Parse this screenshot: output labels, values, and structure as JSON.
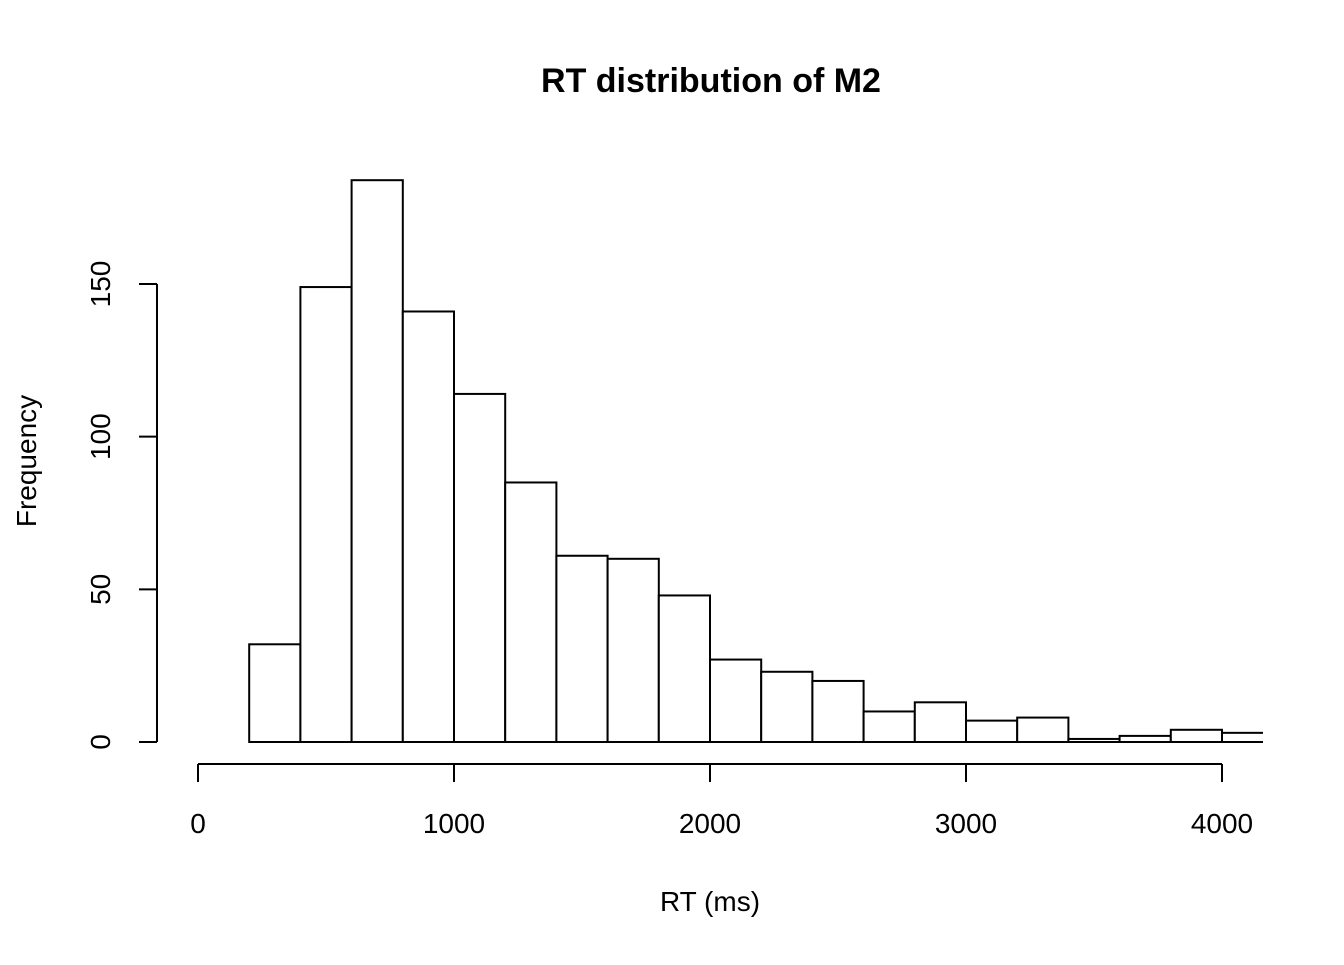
{
  "chart_data": {
    "type": "bar",
    "subtype": "histogram",
    "title": "RT distribution of M2",
    "xlabel": "RT (ms)",
    "ylabel": "Frequency",
    "bin_edges": [
      200,
      400,
      600,
      800,
      1000,
      1200,
      1400,
      1600,
      1800,
      2000,
      2200,
      2400,
      2600,
      2800,
      3000,
      3200,
      3400,
      3600,
      3800,
      4000,
      4200
    ],
    "values": [
      32,
      149,
      184,
      141,
      114,
      85,
      61,
      60,
      48,
      27,
      23,
      20,
      10,
      13,
      7,
      8,
      1,
      2,
      4,
      3
    ],
    "xlim": [
      0,
      4150
    ],
    "ylim": [
      0,
      184
    ],
    "x_ticks": [
      0,
      1000,
      2000,
      3000,
      4000
    ],
    "x_tick_labels": [
      "0",
      "1000",
      "2000",
      "3000",
      "4000"
    ],
    "y_ticks": [
      0,
      50,
      100,
      150
    ],
    "y_tick_labels": [
      "0",
      "50",
      "100",
      "150"
    ],
    "grid": false,
    "bar_fill": "#ffffff",
    "bar_stroke": "#000000"
  }
}
